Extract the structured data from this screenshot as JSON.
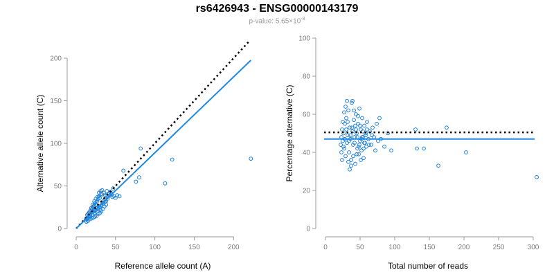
{
  "header": {
    "title": "rs6426943 - ENSG00000143179",
    "pvalue_prefix": "p-value: 5.65×10",
    "pvalue_exp": "-8"
  },
  "colors": {
    "points": "#1e7fd6",
    "fit_line": "#1e88e5",
    "reference_line": "#000000",
    "axis": "#9a9a9a",
    "tick_text": "#7a7a7a"
  },
  "chart_data": [
    {
      "type": "scatter",
      "title": "",
      "xlabel": "Reference allele count (A)",
      "ylabel": "Alternative allele count (C)",
      "xlim": [
        0,
        220
      ],
      "ylim": [
        0,
        200
      ],
      "xticks": [
        0,
        50,
        100,
        150,
        200
      ],
      "yticks": [
        0,
        50,
        100,
        150,
        200
      ],
      "reference_line": {
        "style": "dotted",
        "slope": 1,
        "intercept": 0,
        "x_range": [
          0,
          220
        ]
      },
      "fit_line": {
        "style": "solid",
        "slope": 0.89,
        "intercept": 0,
        "x_range": [
          0,
          222
        ]
      },
      "points": [
        [
          12,
          10
        ],
        [
          13,
          12
        ],
        [
          14,
          11
        ],
        [
          15,
          13
        ],
        [
          16,
          14
        ],
        [
          17,
          15
        ],
        [
          18,
          14
        ],
        [
          14,
          16
        ],
        [
          15,
          17
        ],
        [
          16,
          18
        ],
        [
          18,
          17
        ],
        [
          20,
          19
        ],
        [
          21,
          16
        ],
        [
          22,
          20
        ],
        [
          23,
          18
        ],
        [
          24,
          21
        ],
        [
          25,
          22
        ],
        [
          26,
          20
        ],
        [
          27,
          24
        ],
        [
          28,
          23
        ],
        [
          29,
          26
        ],
        [
          30,
          25
        ],
        [
          31,
          22
        ],
        [
          32,
          27
        ],
        [
          33,
          30
        ],
        [
          34,
          29
        ],
        [
          35,
          33
        ],
        [
          36,
          31
        ],
        [
          37,
          34
        ],
        [
          38,
          32
        ],
        [
          16,
          12
        ],
        [
          17,
          20
        ],
        [
          19,
          22
        ],
        [
          20,
          23
        ],
        [
          21,
          25
        ],
        [
          22,
          26
        ],
        [
          23,
          27
        ],
        [
          24,
          30
        ],
        [
          25,
          28
        ],
        [
          26,
          31
        ],
        [
          27,
          33
        ],
        [
          28,
          35
        ],
        [
          29,
          38
        ],
        [
          30,
          36
        ],
        [
          31,
          40
        ],
        [
          33,
          45
        ],
        [
          35,
          42
        ],
        [
          37,
          39
        ],
        [
          39,
          44
        ],
        [
          41,
          38
        ],
        [
          42,
          41
        ],
        [
          43,
          43
        ],
        [
          45,
          40
        ],
        [
          46,
          37
        ],
        [
          48,
          38
        ],
        [
          50,
          36
        ],
        [
          52,
          39
        ],
        [
          55,
          38
        ],
        [
          40,
          35
        ],
        [
          38,
          28
        ],
        [
          36,
          26
        ],
        [
          34,
          23
        ],
        [
          32,
          20
        ],
        [
          30,
          18
        ],
        [
          28,
          17
        ],
        [
          26,
          15
        ],
        [
          24,
          14
        ],
        [
          22,
          13
        ],
        [
          20,
          12
        ],
        [
          18,
          11
        ],
        [
          15,
          9
        ],
        [
          13,
          8
        ],
        [
          19,
          24
        ],
        [
          21,
          28
        ],
        [
          23,
          32
        ],
        [
          25,
          35
        ],
        [
          27,
          37
        ],
        [
          29,
          42
        ],
        [
          31,
          44
        ],
        [
          33,
          40
        ],
        [
          60,
          68
        ],
        [
          82,
          94
        ],
        [
          76,
          55
        ],
        [
          80,
          60
        ],
        [
          122,
          81
        ],
        [
          113,
          53
        ],
        [
          222,
          82
        ],
        [
          47,
          47
        ],
        [
          44,
          42
        ],
        [
          39,
          39
        ]
      ]
    },
    {
      "type": "scatter",
      "title": "",
      "xlabel": "Total number of reads",
      "ylabel": "Percentage alternative (C)",
      "xlim": [
        0,
        300
      ],
      "ylim": [
        0,
        100
      ],
      "xticks": [
        0,
        50,
        100,
        150,
        200,
        250,
        300
      ],
      "yticks": [
        0,
        20,
        40,
        60,
        80,
        100
      ],
      "reference_line": {
        "style": "dotted",
        "y": 50.5,
        "x_range": [
          -2,
          302
        ]
      },
      "fit_line": {
        "style": "solid",
        "y": 47,
        "x_range": [
          -2,
          302
        ]
      },
      "points": [
        [
          22,
          44
        ],
        [
          23,
          48
        ],
        [
          24,
          52
        ],
        [
          25,
          46
        ],
        [
          26,
          50
        ],
        [
          27,
          42
        ],
        [
          28,
          55
        ],
        [
          29,
          38
        ],
        [
          30,
          58
        ],
        [
          31,
          45
        ],
        [
          32,
          49
        ],
        [
          33,
          62
        ],
        [
          34,
          40
        ],
        [
          35,
          53
        ],
        [
          36,
          47
        ],
        [
          37,
          36
        ],
        [
          38,
          66
        ],
        [
          39,
          51
        ],
        [
          40,
          44
        ],
        [
          41,
          57
        ],
        [
          42,
          48
        ],
        [
          43,
          34
        ],
        [
          44,
          60
        ],
        [
          45,
          50
        ],
        [
          46,
          42
        ],
        [
          47,
          55
        ],
        [
          48,
          39
        ],
        [
          49,
          63
        ],
        [
          50,
          46
        ],
        [
          51,
          52
        ],
        [
          52,
          41
        ],
        [
          53,
          58
        ],
        [
          54,
          48
        ],
        [
          55,
          37
        ],
        [
          56,
          54
        ],
        [
          57,
          45
        ],
        [
          58,
          50
        ],
        [
          59,
          43
        ],
        [
          60,
          56
        ],
        [
          62,
          47
        ],
        [
          64,
          51
        ],
        [
          66,
          44
        ],
        [
          68,
          53
        ],
        [
          70,
          48
        ],
        [
          72,
          41
        ],
        [
          74,
          55
        ],
        [
          76,
          46
        ],
        [
          78,
          58
        ],
        [
          80,
          47
        ],
        [
          85,
          43
        ],
        [
          90,
          50
        ],
        [
          95,
          41
        ],
        [
          25,
          56
        ],
        [
          27,
          61
        ],
        [
          29,
          64
        ],
        [
          31,
          67
        ],
        [
          33,
          35
        ],
        [
          35,
          31
        ],
        [
          37,
          33
        ],
        [
          39,
          67
        ],
        [
          41,
          62
        ],
        [
          43,
          54
        ],
        [
          45,
          39
        ],
        [
          47,
          59
        ],
        [
          49,
          44
        ],
        [
          51,
          36
        ],
        [
          53,
          48
        ],
        [
          55,
          42
        ],
        [
          23,
          40
        ],
        [
          24,
          36
        ],
        [
          26,
          43
        ],
        [
          28,
          47
        ],
        [
          30,
          52
        ],
        [
          32,
          56
        ],
        [
          34,
          46
        ],
        [
          36,
          49
        ],
        [
          38,
          53
        ],
        [
          40,
          38
        ],
        [
          42,
          45
        ],
        [
          44,
          52
        ],
        [
          46,
          48
        ],
        [
          48,
          43
        ],
        [
          50,
          54
        ],
        [
          52,
          47
        ],
        [
          54,
          51
        ],
        [
          56,
          45
        ],
        [
          58,
          49
        ],
        [
          60,
          52
        ],
        [
          63,
          44
        ],
        [
          67,
          49
        ],
        [
          130,
          52
        ],
        [
          132,
          42
        ],
        [
          142,
          42
        ],
        [
          163,
          33
        ],
        [
          175,
          53
        ],
        [
          203,
          40
        ],
        [
          305,
          27
        ]
      ]
    }
  ]
}
